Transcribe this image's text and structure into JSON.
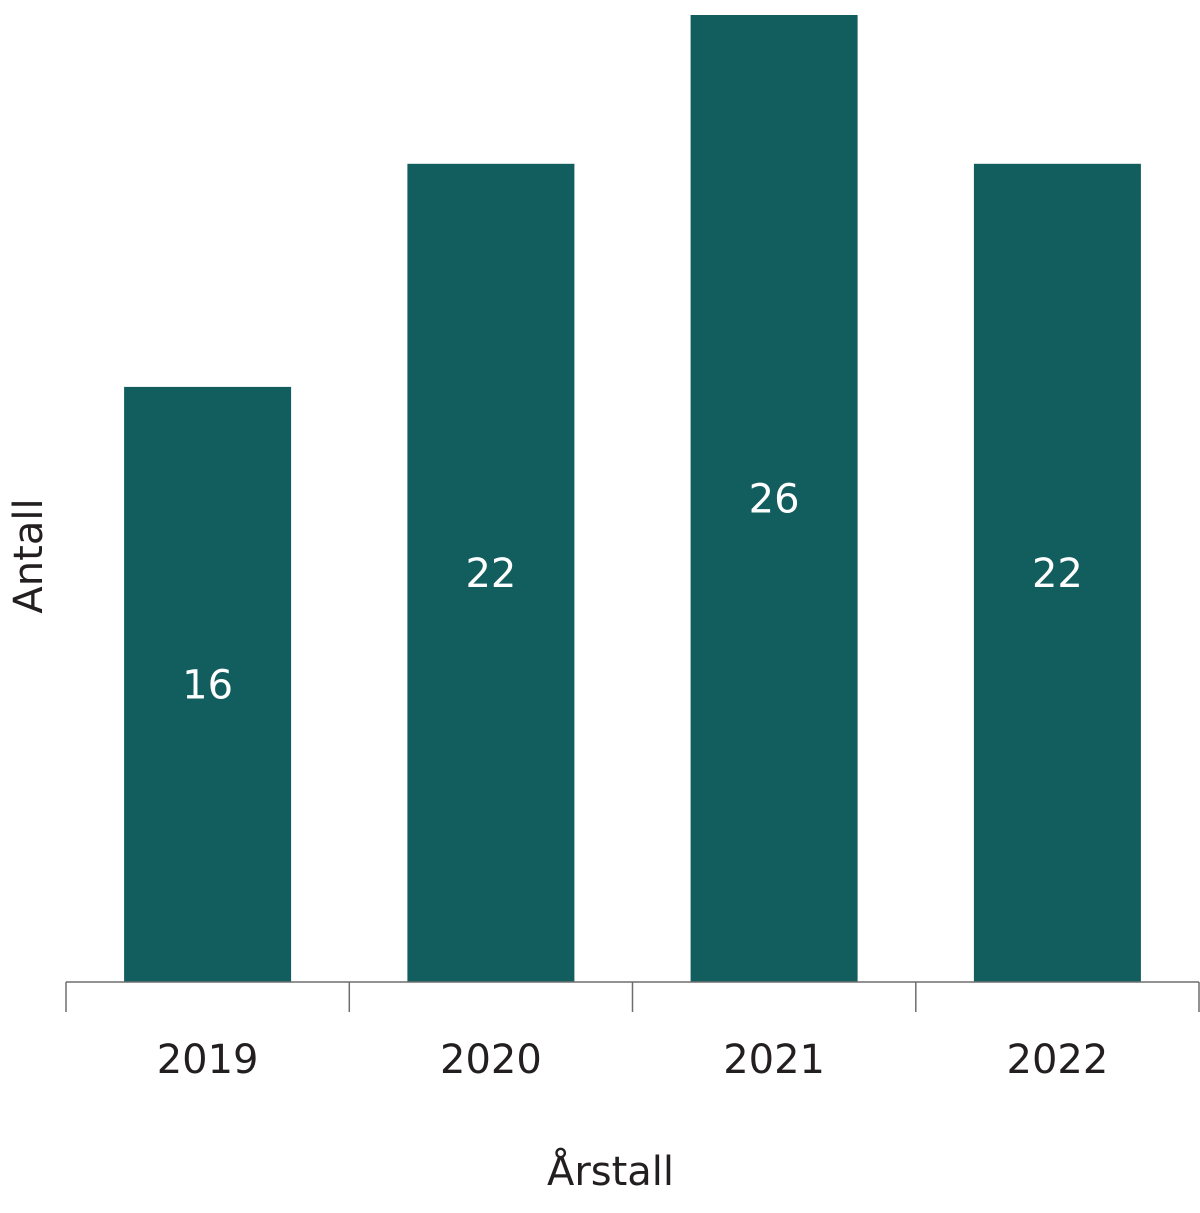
{
  "chart_data": {
    "type": "bar",
    "title": "",
    "xlabel": "Årstall",
    "ylabel": "Antall",
    "categories": [
      "2019",
      "2020",
      "2021",
      "2022"
    ],
    "values": [
      16,
      22,
      26,
      22
    ],
    "data_labels": [
      "16",
      "22",
      "26",
      "22"
    ],
    "ylim": [
      0,
      26
    ],
    "grid": false,
    "legend": "none",
    "bar_color": "#125d5e",
    "label_color": "#ffffff"
  }
}
